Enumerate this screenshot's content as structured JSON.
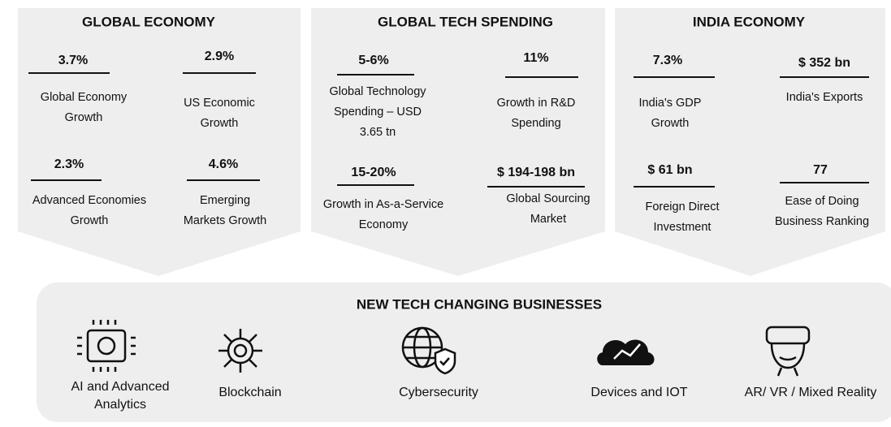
{
  "panels": [
    {
      "title": "GLOBAL ECONOMY",
      "stats": [
        {
          "value": "3.7%",
          "label": [
            "Global Economy",
            "Growth"
          ]
        },
        {
          "value": "2.9%",
          "label": [
            "US Economic",
            "Growth"
          ]
        },
        {
          "value": "2.3%",
          "label": [
            "Advanced Economies",
            "Growth"
          ]
        },
        {
          "value": "4.6%",
          "label": [
            "Emerging",
            "Markets Growth"
          ]
        }
      ]
    },
    {
      "title": "GLOBAL TECH SPENDING",
      "stats": [
        {
          "value": "5-6%",
          "label": [
            "Global Technology",
            "Spending – USD",
            "3.65 tn"
          ]
        },
        {
          "value": "11%",
          "label": [
            "Growth in R&D",
            "Spending"
          ]
        },
        {
          "value": "15-20%",
          "label": [
            "Growth in As-a-Service",
            "Economy"
          ]
        },
        {
          "value": "$ 194-198 bn",
          "label": [
            "Global Sourcing",
            "Market"
          ]
        }
      ]
    },
    {
      "title": "INDIA ECONOMY",
      "stats": [
        {
          "value": "7.3%",
          "label": [
            "India's GDP",
            "Growth"
          ]
        },
        {
          "value": "$ 352 bn",
          "label": [
            "India's Exports"
          ]
        },
        {
          "value": "$ 61 bn",
          "label": [
            "Foreign Direct",
            "Investment"
          ]
        },
        {
          "value": "77",
          "label": [
            "Ease of Doing",
            "Business Ranking"
          ]
        }
      ]
    }
  ],
  "new_tech": {
    "title": "NEW TECH CHANGING BUSINESSES",
    "items": [
      [
        "AI and Advanced",
        "Analytics"
      ],
      [
        "Blockchain"
      ],
      [
        "Cybersecurity"
      ],
      [
        "Devices and IOT"
      ],
      [
        "AR/ VR / Mixed Reality"
      ]
    ]
  }
}
